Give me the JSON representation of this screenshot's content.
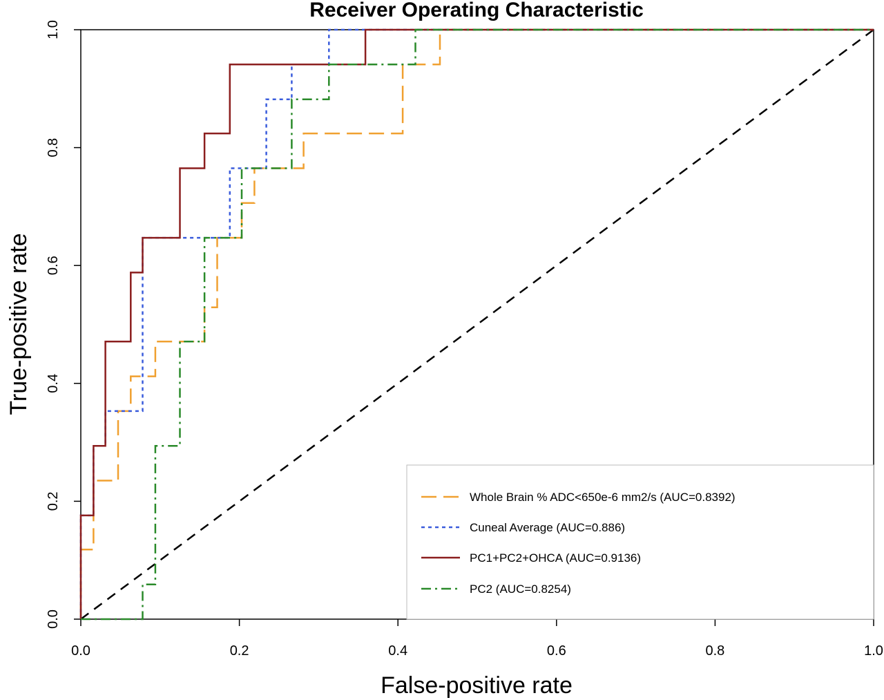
{
  "chart_data": {
    "type": "line",
    "title": "Receiver Operating Characteristic",
    "xlabel": "False-positive rate",
    "ylabel": "True-positive rate",
    "xlim": [
      0,
      1
    ],
    "ylim": [
      0,
      1
    ],
    "xticks": [
      "0.0",
      "0.2",
      "0.4",
      "0.6",
      "0.8",
      "1.0"
    ],
    "yticks": [
      "0.0",
      "0.2",
      "0.4",
      "0.6",
      "0.8",
      "1.0"
    ],
    "grid": false,
    "legend_position": "bottom-right",
    "diagonal_reference": true,
    "series": [
      {
        "name": "Whole Brain % ADC<650e-6 mm2/s (AUC=0.8392)",
        "color": "#f0a030",
        "dash": "long-dash",
        "x": [
          0,
          0,
          0.016,
          0.016,
          0.047,
          0.047,
          0.063,
          0.063,
          0.094,
          0.094,
          0.156,
          0.156,
          0.172,
          0.172,
          0.188,
          0.203,
          0.203,
          0.219,
          0.219,
          0.266,
          0.281,
          0.281,
          0.406,
          0.406,
          0.453,
          0.453,
          1.0
        ],
        "y": [
          0,
          0.118,
          0.118,
          0.235,
          0.235,
          0.353,
          0.353,
          0.412,
          0.412,
          0.471,
          0.471,
          0.529,
          0.529,
          0.647,
          0.647,
          0.647,
          0.706,
          0.706,
          0.765,
          0.765,
          0.765,
          0.824,
          0.824,
          0.941,
          0.941,
          1.0,
          1.0
        ]
      },
      {
        "name": "Cuneal Average (AUC=0.886)",
        "color": "#3a5cdc",
        "dash": "dotted",
        "x": [
          0,
          0,
          0.016,
          0.016,
          0.031,
          0.031,
          0.078,
          0.078,
          0.188,
          0.188,
          0.234,
          0.234,
          0.266,
          0.266,
          0.313,
          0.313,
          1.0
        ],
        "y": [
          0,
          0.176,
          0.176,
          0.294,
          0.294,
          0.353,
          0.353,
          0.647,
          0.647,
          0.765,
          0.765,
          0.882,
          0.882,
          0.941,
          0.941,
          1.0,
          1.0
        ]
      },
      {
        "name": "PC1+PC2+OHCA (AUC=0.9136)",
        "color": "#8b1e1e",
        "dash": "solid",
        "x": [
          0,
          0,
          0.016,
          0.016,
          0.031,
          0.031,
          0.063,
          0.063,
          0.078,
          0.078,
          0.125,
          0.125,
          0.156,
          0.156,
          0.188,
          0.188,
          0.359,
          0.359,
          1.0
        ],
        "y": [
          0,
          0.176,
          0.176,
          0.294,
          0.294,
          0.471,
          0.471,
          0.588,
          0.588,
          0.647,
          0.647,
          0.765,
          0.765,
          0.824,
          0.824,
          0.941,
          0.941,
          1.0,
          1.0
        ]
      },
      {
        "name": "PC2 (AUC=0.8254)",
        "color": "#2a8a2a",
        "dash": "dash-dot",
        "x": [
          0,
          0.078,
          0.078,
          0.094,
          0.094,
          0.125,
          0.125,
          0.156,
          0.156,
          0.203,
          0.203,
          0.266,
          0.266,
          0.313,
          0.313,
          0.422,
          0.422,
          1.0
        ],
        "y": [
          0,
          0,
          0.059,
          0.059,
          0.294,
          0.294,
          0.471,
          0.471,
          0.647,
          0.647,
          0.765,
          0.765,
          0.882,
          0.882,
          0.941,
          0.941,
          1.0,
          1.0
        ]
      }
    ]
  }
}
